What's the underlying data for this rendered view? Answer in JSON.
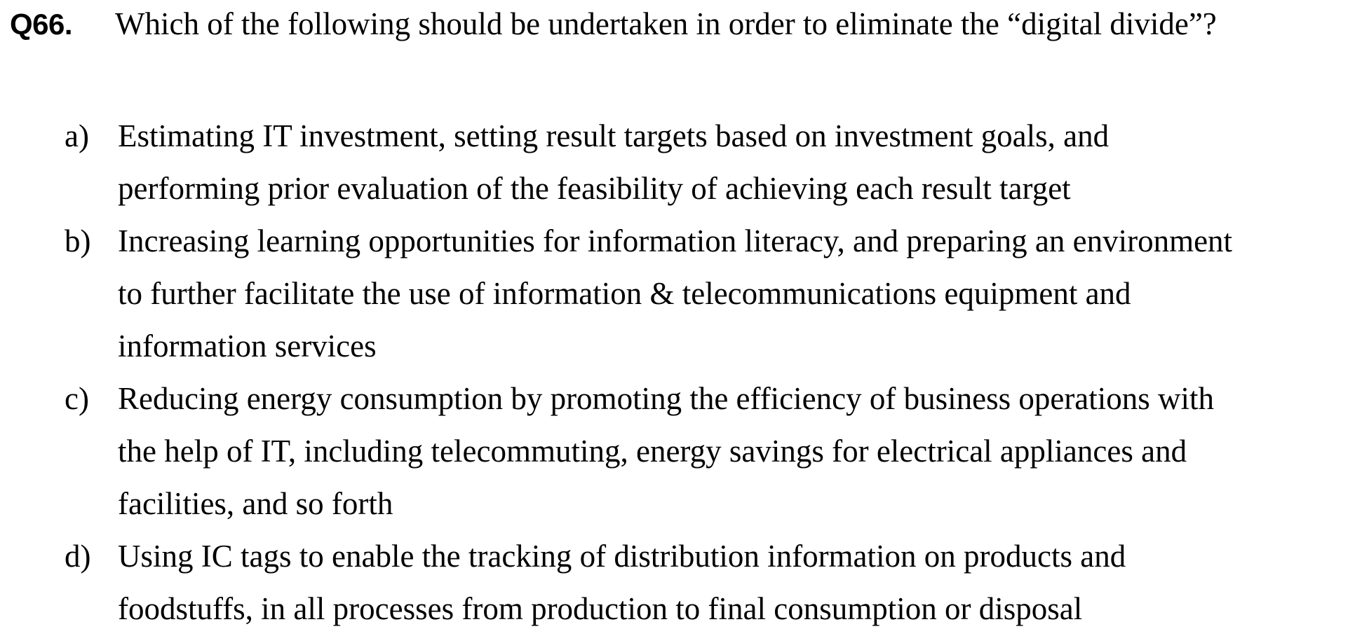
{
  "question": {
    "number": "Q66.",
    "text": "Which of the following should be undertaken in order to eliminate the “digital divide”?"
  },
  "options": [
    {
      "letter": "a)",
      "text": "Estimating IT investment, setting result targets based on investment goals, and\nperforming prior evaluation of the feasibility of achieving each result target"
    },
    {
      "letter": "b)",
      "text": "Increasing learning opportunities for information literacy, and preparing an environment\nto further facilitate the use of information & telecommunications equipment and\ninformation services"
    },
    {
      "letter": "c)",
      "text": "Reducing energy consumption by promoting the efficiency of business operations with\nthe help of IT, including telecommuting, energy savings for electrical appliances and\nfacilities, and so forth"
    },
    {
      "letter": "d)",
      "text": "Using IC tags to enable the tracking of distribution information on products and\nfoodstuffs, in all processes from production to final consumption or disposal"
    }
  ]
}
